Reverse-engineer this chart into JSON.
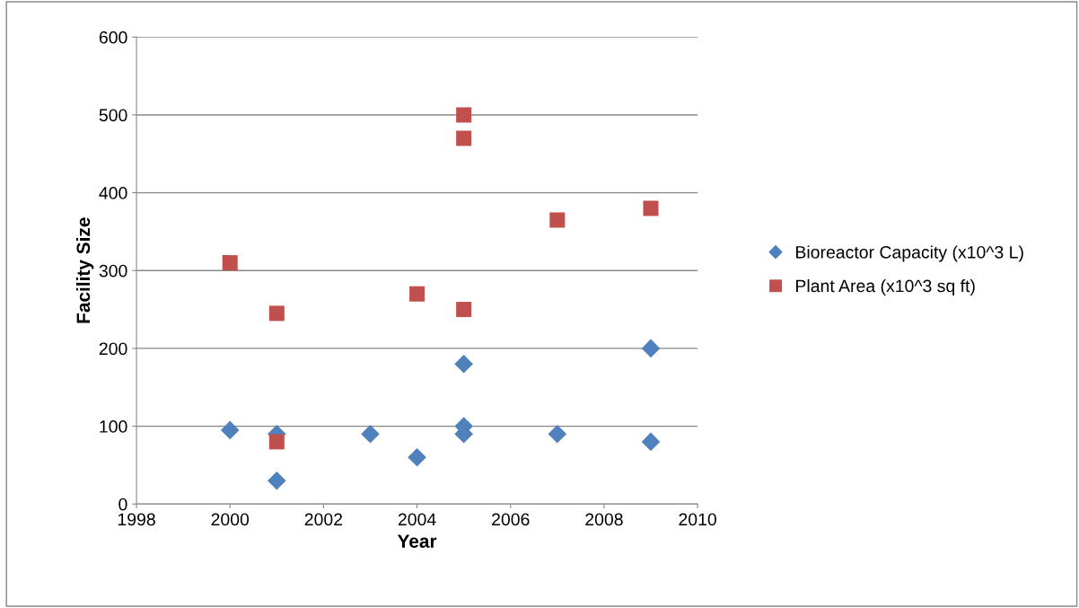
{
  "chart_data": {
    "type": "scatter",
    "xlabel": "Year",
    "ylabel": "Facility Size",
    "series": [
      {
        "name": "Bioreactor Capacity (x10^3 L)",
        "color": "#4f81bd",
        "marker": "diamond",
        "x": [
          2000,
          2001,
          2001,
          2003,
          2004,
          2005,
          2005,
          2005,
          2007,
          2009,
          2009
        ],
        "values": [
          95,
          90,
          30,
          90,
          60,
          180,
          100,
          90,
          90,
          200,
          80
        ]
      },
      {
        "name": "Plant Area (x10^3 sq ft)",
        "color": "#c0504d",
        "marker": "square",
        "x": [
          2000,
          2001,
          2001,
          2004,
          2005,
          2005,
          2005,
          2007,
          2009
        ],
        "values": [
          310,
          245,
          80,
          270,
          500,
          470,
          250,
          365,
          380
        ]
      }
    ],
    "xlim": [
      1998,
      2010
    ],
    "xticks": [
      1998,
      2000,
      2002,
      2004,
      2006,
      2008,
      2010
    ],
    "ylim": [
      0,
      600
    ],
    "yticks": [
      0,
      100,
      200,
      300,
      400,
      500,
      600
    ],
    "grid": "y",
    "legend": "right"
  }
}
